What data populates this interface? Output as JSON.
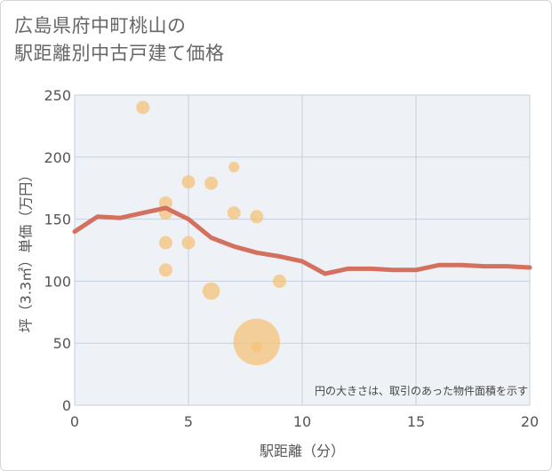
{
  "title": {
    "line1": "広島県府中町桃山の",
    "line2": "駅距離別中古戸建て価格"
  },
  "chart_data": {
    "type": "scatter+line",
    "xlabel": "駅距離（分）",
    "ylabel": "坪（3.3㎡）単価（万円）",
    "xlim": [
      0,
      20
    ],
    "ylim": [
      0,
      250
    ],
    "xticks": [
      0,
      5,
      10,
      15,
      20
    ],
    "yticks": [
      0,
      50,
      100,
      150,
      200,
      250
    ],
    "grid": true,
    "note": "円の大きさは、取引のあった物件面積を示す",
    "colors": {
      "bubble": "#f5c27a",
      "line": "#d4705e",
      "grid": "#c5cfdc",
      "background": "#eef2f7"
    },
    "bubbles": [
      {
        "x": 3,
        "y": 240,
        "size": 1
      },
      {
        "x": 4,
        "y": 163,
        "size": 1
      },
      {
        "x": 4,
        "y": 155,
        "size": 1
      },
      {
        "x": 4,
        "y": 131,
        "size": 1
      },
      {
        "x": 4,
        "y": 109,
        "size": 1
      },
      {
        "x": 5,
        "y": 180,
        "size": 1
      },
      {
        "x": 5,
        "y": 131,
        "size": 1
      },
      {
        "x": 6,
        "y": 179,
        "size": 1
      },
      {
        "x": 6,
        "y": 92,
        "size": 1.3
      },
      {
        "x": 7,
        "y": 192,
        "size": 0.8
      },
      {
        "x": 7,
        "y": 155,
        "size": 1
      },
      {
        "x": 8,
        "y": 152,
        "size": 1
      },
      {
        "x": 8,
        "y": 51,
        "size": 3.5
      },
      {
        "x": 8,
        "y": 47,
        "size": 0.8
      },
      {
        "x": 9,
        "y": 100,
        "size": 1
      }
    ],
    "trend_line": {
      "x": [
        0,
        1,
        2,
        3,
        4,
        5,
        6,
        7,
        8,
        9,
        10,
        11,
        12,
        13,
        14,
        15,
        16,
        17,
        18,
        19,
        20
      ],
      "y": [
        140,
        152,
        151,
        155,
        159,
        150,
        135,
        128,
        123,
        120,
        116,
        106,
        110,
        110,
        109,
        109,
        113,
        113,
        112,
        112,
        111
      ]
    }
  }
}
